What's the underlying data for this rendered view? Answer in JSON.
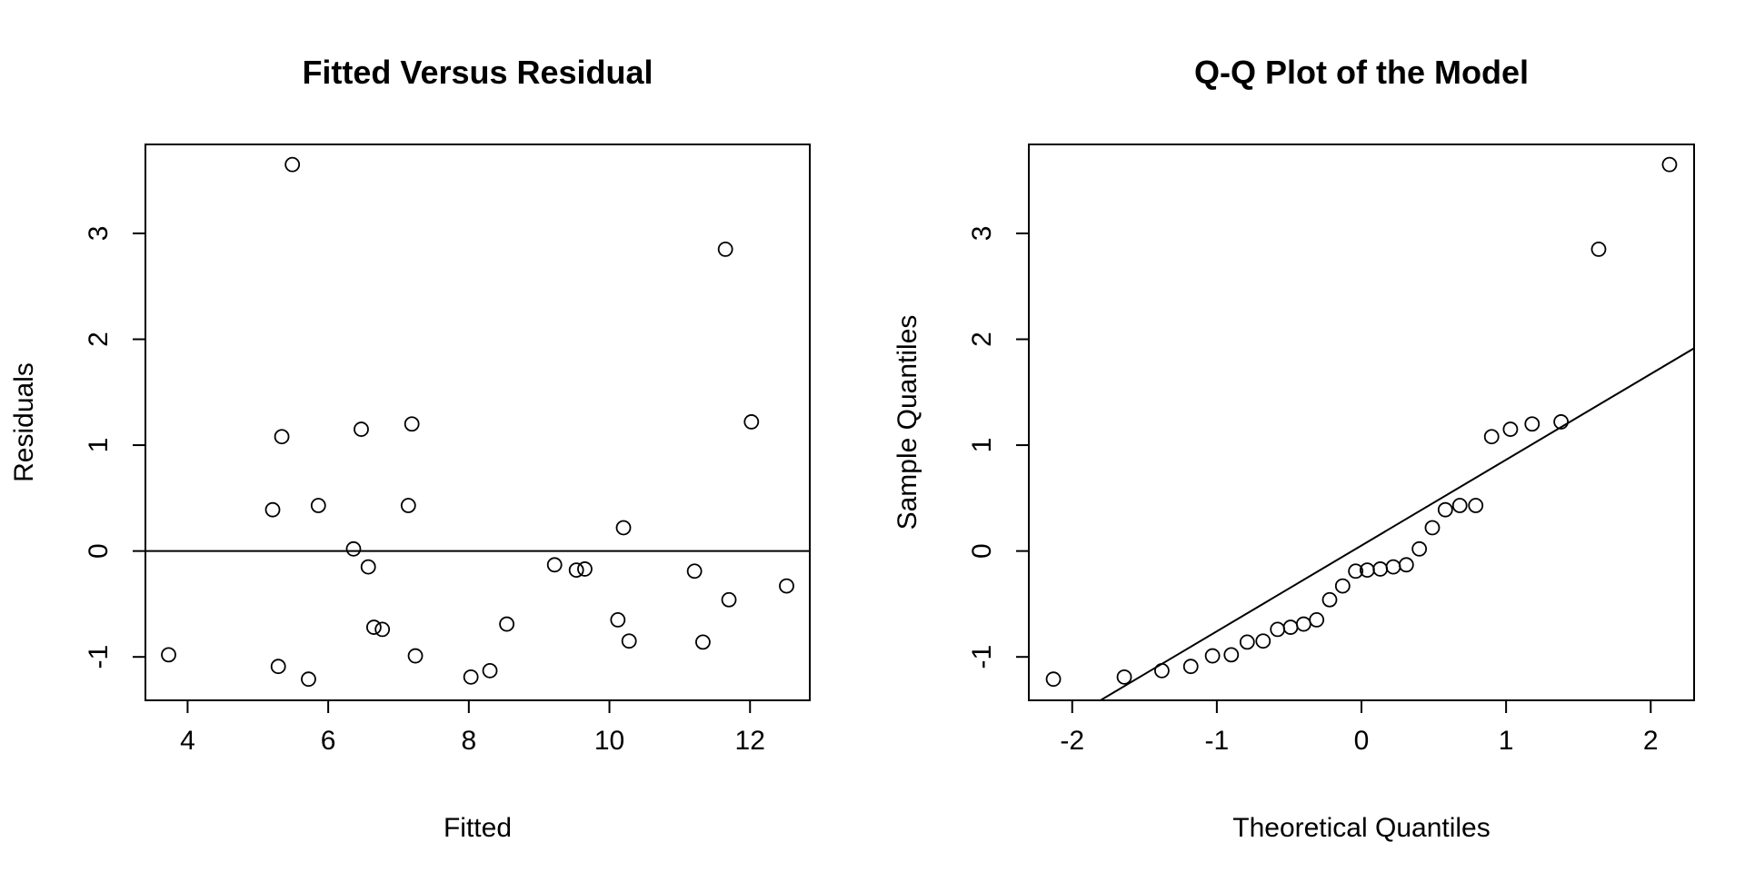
{
  "chart_data": [
    {
      "type": "scatter",
      "title": "Fitted Versus Residual",
      "xlabel": "Fitted",
      "ylabel": "Residuals",
      "xlim": [
        3.4,
        12.85
      ],
      "ylim": [
        -1.41,
        3.84
      ],
      "xticks": [
        4,
        6,
        8,
        10,
        12
      ],
      "yticks": [
        -1,
        0,
        1,
        2,
        3
      ],
      "x_tick_labels": [
        "4",
        "6",
        "8",
        "10",
        "12"
      ],
      "y_tick_labels": [
        "-1",
        "0",
        "1",
        "2",
        "3"
      ],
      "hline": 0,
      "grid": false,
      "points": [
        {
          "x": 3.73,
          "y": -0.98
        },
        {
          "x": 5.21,
          "y": 0.39
        },
        {
          "x": 5.29,
          "y": -1.09
        },
        {
          "x": 5.34,
          "y": 1.08
        },
        {
          "x": 5.49,
          "y": 3.65
        },
        {
          "x": 5.72,
          "y": -1.21
        },
        {
          "x": 5.86,
          "y": 0.43
        },
        {
          "x": 6.36,
          "y": 0.02
        },
        {
          "x": 6.47,
          "y": 1.15
        },
        {
          "x": 6.57,
          "y": -0.15
        },
        {
          "x": 6.65,
          "y": -0.72
        },
        {
          "x": 6.77,
          "y": -0.74
        },
        {
          "x": 7.14,
          "y": 0.43
        },
        {
          "x": 7.19,
          "y": 1.2
        },
        {
          "x": 7.24,
          "y": -0.99
        },
        {
          "x": 8.03,
          "y": -1.19
        },
        {
          "x": 8.3,
          "y": -1.13
        },
        {
          "x": 8.54,
          "y": -0.69
        },
        {
          "x": 9.22,
          "y": -0.13
        },
        {
          "x": 9.53,
          "y": -0.18
        },
        {
          "x": 9.65,
          "y": -0.17
        },
        {
          "x": 10.12,
          "y": -0.65
        },
        {
          "x": 10.2,
          "y": 0.22
        },
        {
          "x": 10.28,
          "y": -0.85
        },
        {
          "x": 11.21,
          "y": -0.19
        },
        {
          "x": 11.33,
          "y": -0.86
        },
        {
          "x": 11.65,
          "y": 2.85
        },
        {
          "x": 11.7,
          "y": -0.46
        },
        {
          "x": 12.02,
          "y": 1.22
        },
        {
          "x": 12.52,
          "y": -0.33
        }
      ]
    },
    {
      "type": "scatter",
      "title": "Q-Q Plot of the Model",
      "xlabel": "Theoretical Quantiles",
      "ylabel": "Sample Quantiles",
      "xlim": [
        -2.3,
        2.3
      ],
      "ylim": [
        -1.41,
        3.84
      ],
      "xticks": [
        -2,
        -1,
        0,
        1,
        2
      ],
      "yticks": [
        -1,
        0,
        1,
        2,
        3
      ],
      "x_tick_labels": [
        "-2",
        "-1",
        "0",
        "1",
        "2"
      ],
      "y_tick_labels": [
        "-1",
        "0",
        "1",
        "2",
        "3"
      ],
      "reference_line": {
        "intercept": 0.052,
        "slope": 0.81
      },
      "grid": false,
      "points": [
        {
          "x": -2.13,
          "y": -1.21
        },
        {
          "x": -1.64,
          "y": -1.19
        },
        {
          "x": -1.38,
          "y": -1.13
        },
        {
          "x": -1.18,
          "y": -1.09
        },
        {
          "x": -1.03,
          "y": -0.99
        },
        {
          "x": -0.9,
          "y": -0.98
        },
        {
          "x": -0.79,
          "y": -0.86
        },
        {
          "x": -0.68,
          "y": -0.85
        },
        {
          "x": -0.58,
          "y": -0.74
        },
        {
          "x": -0.49,
          "y": -0.72
        },
        {
          "x": -0.4,
          "y": -0.69
        },
        {
          "x": -0.31,
          "y": -0.65
        },
        {
          "x": -0.22,
          "y": -0.46
        },
        {
          "x": -0.13,
          "y": -0.33
        },
        {
          "x": -0.04,
          "y": -0.19
        },
        {
          "x": 0.04,
          "y": -0.18
        },
        {
          "x": 0.13,
          "y": -0.17
        },
        {
          "x": 0.22,
          "y": -0.15
        },
        {
          "x": 0.31,
          "y": -0.13
        },
        {
          "x": 0.4,
          "y": 0.02
        },
        {
          "x": 0.49,
          "y": 0.22
        },
        {
          "x": 0.58,
          "y": 0.39
        },
        {
          "x": 0.68,
          "y": 0.43
        },
        {
          "x": 0.79,
          "y": 0.43
        },
        {
          "x": 0.9,
          "y": 1.08
        },
        {
          "x": 1.03,
          "y": 1.15
        },
        {
          "x": 1.18,
          "y": 1.2
        },
        {
          "x": 1.38,
          "y": 1.22
        },
        {
          "x": 1.64,
          "y": 2.85
        },
        {
          "x": 2.13,
          "y": 3.65
        }
      ]
    }
  ]
}
